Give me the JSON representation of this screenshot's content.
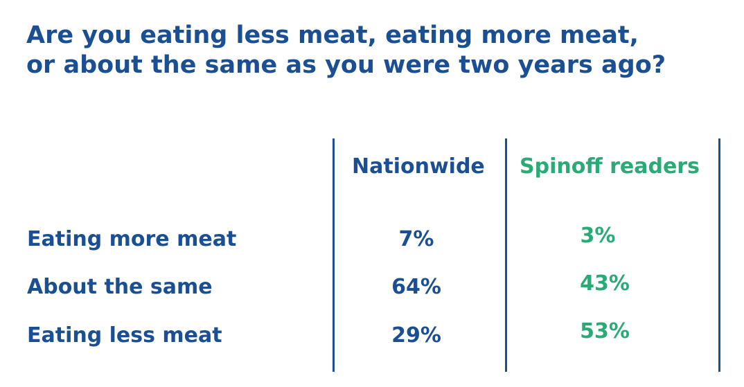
{
  "colors": {
    "primary": "#1b4f93",
    "accent": "#2aaa74"
  },
  "chart_data": {
    "type": "table",
    "title_lines": [
      "Are you eating less meat, eating more meat,",
      "or about the same as you were two years ago?"
    ],
    "columns": [
      "Nationwide",
      "Spinoff readers"
    ],
    "rows": [
      {
        "label": "Eating more meat",
        "values": [
          "7%",
          "3%"
        ]
      },
      {
        "label": "About the same",
        "values": [
          "64%",
          "43%"
        ]
      },
      {
        "label": "Eating less meat",
        "values": [
          "29%",
          "53%"
        ]
      }
    ]
  }
}
